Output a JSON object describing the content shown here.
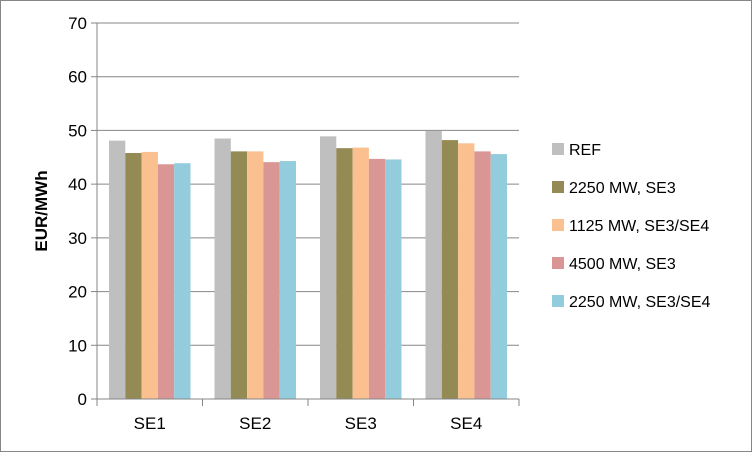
{
  "chart_data": {
    "type": "bar",
    "categories": [
      "SE1",
      "SE2",
      "SE3",
      "SE4"
    ],
    "series": [
      {
        "name": "REF",
        "color": "#bfbfbf",
        "values": [
          48.1,
          48.5,
          48.9,
          49.9
        ]
      },
      {
        "name": "2250 MW, SE3",
        "color": "#948a54",
        "values": [
          45.8,
          46.1,
          46.7,
          48.2
        ]
      },
      {
        "name": "1125 MW, SE3/SE4",
        "color": "#fac090",
        "values": [
          46.0,
          46.1,
          46.8,
          47.6
        ]
      },
      {
        "name": "4500 MW, SE3",
        "color": "#d99694",
        "values": [
          43.7,
          44.1,
          44.7,
          46.1
        ]
      },
      {
        "name": "2250 MW, SE3/SE4",
        "color": "#93cddd",
        "values": [
          43.9,
          44.3,
          44.6,
          45.6
        ]
      }
    ],
    "ylabel": "EUR/MWh",
    "xlabel": "",
    "ylim": [
      0,
      70
    ],
    "yticks": [
      0,
      10,
      20,
      30,
      40,
      50,
      60,
      70
    ],
    "grid": true,
    "legend_position": "right"
  }
}
